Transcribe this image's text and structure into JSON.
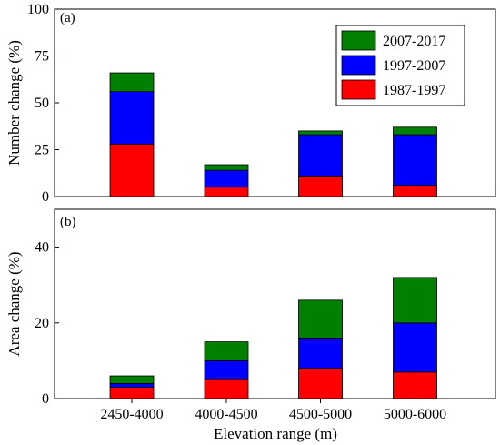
{
  "chart_data": [
    {
      "type": "bar",
      "stacked": true,
      "panel_label": "(a)",
      "ylabel": "Number change (%)",
      "ylim": [
        0,
        100
      ],
      "yticks": [
        "0",
        "25",
        "50",
        "75",
        "100"
      ],
      "categories": [
        "2450-4000",
        "4000-4500",
        "4500-5000",
        "5000-6000"
      ],
      "series": [
        {
          "name": "1987-1997",
          "color": "#ff0000",
          "values": [
            28,
            5,
            11,
            6
          ]
        },
        {
          "name": "1997-2007",
          "color": "#0000ff",
          "values": [
            28,
            9,
            22,
            27
          ]
        },
        {
          "name": "2007-2017",
          "color": "#008000",
          "values": [
            10,
            3,
            2,
            4
          ]
        }
      ],
      "legend": {
        "position": "top-right",
        "order": [
          "2007-2017",
          "1997-2007",
          "1987-1997"
        ]
      },
      "grid": false
    },
    {
      "type": "bar",
      "stacked": true,
      "panel_label": "(b)",
      "ylabel": "Area change (%)",
      "xlabel": "Elevation range (m)",
      "ylim": [
        0,
        50
      ],
      "yticks": [
        "0",
        "20",
        "40"
      ],
      "categories": [
        "2450-4000",
        "4000-4500",
        "4500-5000",
        "5000-6000"
      ],
      "series": [
        {
          "name": "1987-1997",
          "color": "#ff0000",
          "values": [
            3,
            5,
            8,
            7
          ]
        },
        {
          "name": "1997-2007",
          "color": "#0000ff",
          "values": [
            1,
            5,
            8,
            13
          ]
        },
        {
          "name": "2007-2017",
          "color": "#008000",
          "values": [
            2,
            5,
            10,
            12
          ]
        }
      ],
      "grid": false
    }
  ]
}
